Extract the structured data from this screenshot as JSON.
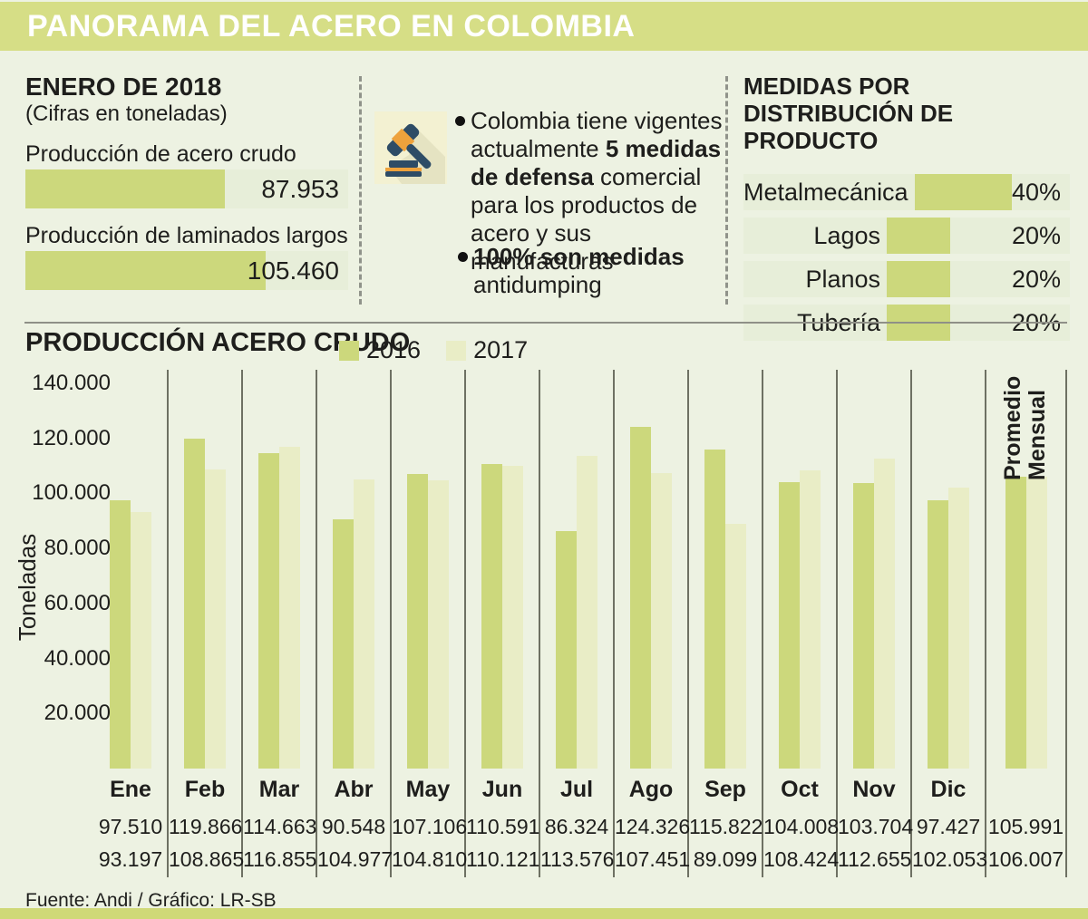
{
  "header": {
    "title": "PANORAMA DEL ACERO EN COLOMBIA"
  },
  "colors": {
    "accent_2016": "#ccd87c",
    "pale_2017": "#e9edc6",
    "strip_bg": "#e7eed9",
    "header_bar": "#d6de86",
    "page_bg": "#edf2e2",
    "icon_bg": "#f3f1d2",
    "icon_navy": "#2e4c66",
    "icon_orange": "#eea23c"
  },
  "enero": {
    "title": "ENERO DE 2018",
    "subtitle": "(Cifras en toneladas)",
    "scale_max": 142000,
    "bars": [
      {
        "label": "Producción de acero crudo",
        "value": 87953
      },
      {
        "label": "Producción de laminados largos",
        "value": 105460
      }
    ]
  },
  "medidas": {
    "bullet1": {
      "pre": "Colombia tiene vigentes actualmente ",
      "bold": "5 medidas de defensa",
      "post": " comercial para los productos de acero y sus manufacturas"
    },
    "bullet2": {
      "bold": "100% son medidas",
      "post": " antidumping"
    }
  },
  "distribucion": {
    "title": "MEDIDAS POR DISTRIBUCIÓN DE PRODUCTO",
    "rows": [
      {
        "label": "Metalmecánica",
        "pct": 40
      },
      {
        "label": "Lagos",
        "pct": 20
      },
      {
        "label": "Planos",
        "pct": 20
      },
      {
        "label": "Tubería",
        "pct": 20
      }
    ]
  },
  "chart": {
    "title": "PRODUCCIÓN ACERO CRUDO",
    "legend": [
      "2016",
      "2017"
    ],
    "ylabel": "Toneladas",
    "promedio_label": "Promedio Mensual"
  },
  "chart_data": {
    "type": "bar",
    "title": "PRODUCCIÓN ACERO CRUDO",
    "ylabel": "Toneladas",
    "ylim": [
      0,
      140000
    ],
    "yticks": [
      140000,
      120000,
      100000,
      80000,
      60000,
      40000,
      20000
    ],
    "ytick_labels": [
      "140.000",
      "120.000",
      "100.000",
      "80.000",
      "60.000",
      "40.000",
      "20.000"
    ],
    "grid": "vertical-column-separators",
    "legend_position": "top",
    "categories": [
      "Ene",
      "Feb",
      "Mar",
      "Abr",
      "May",
      "Jun",
      "Jul",
      "Ago",
      "Sep",
      "Oct",
      "Nov",
      "Dic",
      "Promedio Mensual"
    ],
    "series": [
      {
        "name": "2016",
        "values": [
          97510,
          119866,
          114663,
          90548,
          107106,
          110591,
          86324,
          124326,
          115822,
          104008,
          103704,
          97427,
          105991
        ]
      },
      {
        "name": "2017",
        "values": [
          93197,
          108865,
          116855,
          104977,
          104810,
          110121,
          113576,
          107451,
          89099,
          108424,
          112655,
          102053,
          106007
        ]
      }
    ]
  },
  "footer": {
    "source": "Fuente: Andi  / Gráfico: LR-SB"
  }
}
